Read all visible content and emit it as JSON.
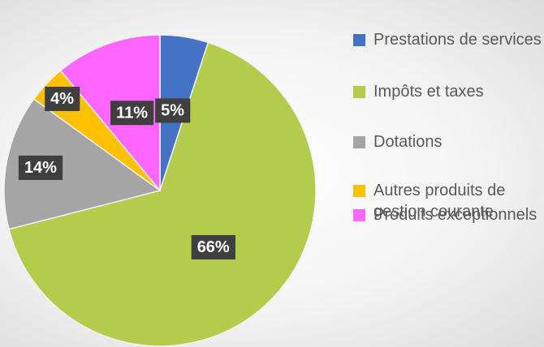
{
  "chart_data": {
    "type": "pie",
    "categories": [
      "Prestations de services",
      "Impôts et taxes",
      "Dotations",
      "Autres produits de gestion courante",
      "Produits exceptionnels"
    ],
    "values": [
      5,
      66,
      14,
      4,
      11
    ],
    "value_labels": [
      "5%",
      "66%",
      "14%",
      "4%",
      "11%"
    ],
    "colors": [
      "#4472c4",
      "#b4cb4c",
      "#a5a5a5",
      "#ffc000",
      "#ff66ff"
    ],
    "legend": "right"
  }
}
